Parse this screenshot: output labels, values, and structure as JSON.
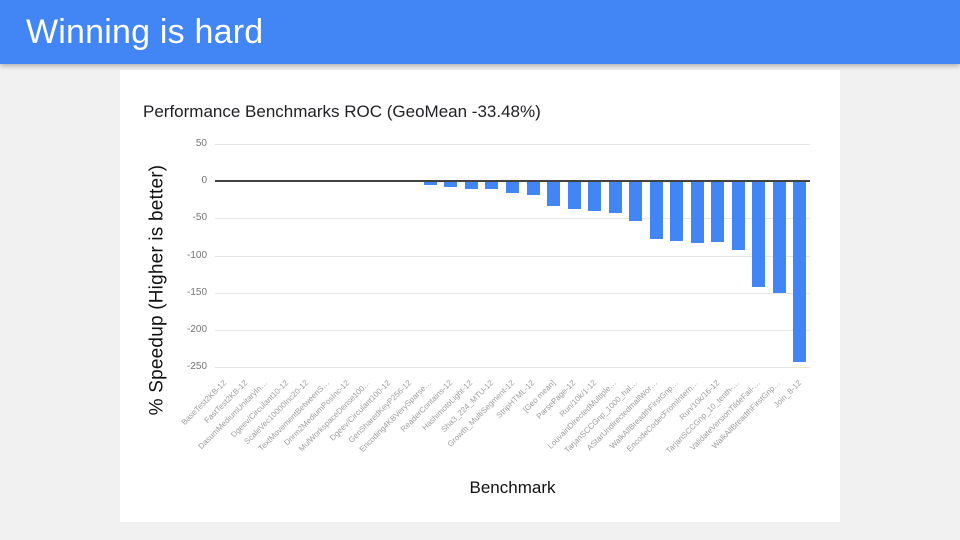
{
  "slide": {
    "title": "Winning is hard"
  },
  "colors": {
    "page_bg": "#f1f1f1",
    "card_bg": "#ffffff",
    "header_bg": "#4285f4",
    "header_text": "#ffffff",
    "bar": "#4285f4",
    "grid": "#e6e6e6",
    "zero_line": "#424242",
    "tick_text": "#757575",
    "label_text": "#9e9e9e",
    "title_text": "#202124"
  },
  "chart_data": {
    "type": "bar",
    "title": "Performance Benchmarks ROC (GeoMean -33.48%)",
    "xlabel": "Benchmark",
    "ylabel": "% Speedup (Higher is better)",
    "ylim": [
      -250,
      50
    ],
    "yticks": [
      50,
      0,
      -50,
      -100,
      -150,
      -200,
      -250
    ],
    "grid": true,
    "legend": "none",
    "bar_color": "#4285f4",
    "categories": [
      "BaseTest2KB-12",
      "FastTest2KB-12",
      "DasumMediumUnitaryIn…",
      "Dgeev/Circulant10-12",
      "ScaleVec10000Inc20-12",
      "TextMovementBetweenS…",
      "Dnrm2MediumPosInc-12",
      "MulWorkspaceDense100…",
      "Dgeev/Circulant100-12",
      "GenSharedKeyP256-12",
      "Encoding4KBVerySparse…",
      "ReaderContains-12",
      "HashimotoLight-12",
      "Sha3_224_MTU-12",
      "Growth_MultiSegment-12",
      "StripHTML-12",
      "[Geo mean]",
      "ParsePage-12",
      "Run/10k/1-12",
      "LouvainDirectedMultiple…",
      "TarjanSCCGnp_1000_hal…",
      "AStarUndirectedmallWor…",
      "WalkAllBreadthFirstGnp…",
      "EncodeCodecFromIntern…",
      "Run/10k/16-12",
      "TarjanSCCGnp_10_tenth-…",
      "ValidateVersionTildeFail-…",
      "WalkAllBreadthFirstGnp…",
      "Join_8-12"
    ],
    "values": [
      0.5,
      0.2,
      -0.1,
      -0.2,
      -0.3,
      -0.5,
      -0.7,
      -1,
      -1.3,
      -1.6,
      -5,
      -8.5,
      -10.5,
      -11,
      -15.5,
      -19,
      -33.48,
      -37,
      -39.5,
      -43.5,
      -53,
      -78,
      -80,
      -83,
      -82,
      -93,
      -143,
      -150,
      -243
    ]
  }
}
